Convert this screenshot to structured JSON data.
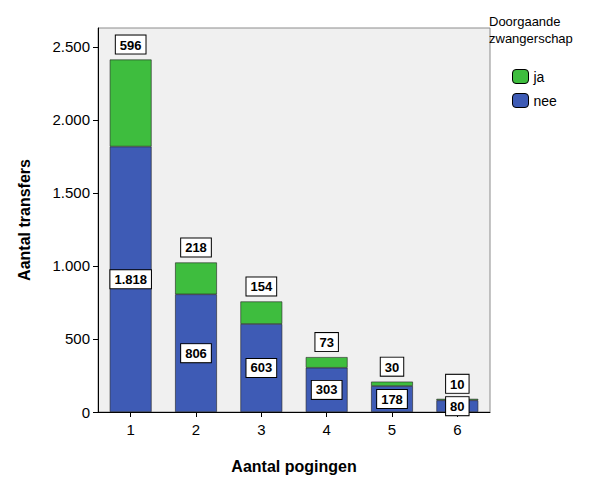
{
  "chart_data": {
    "type": "bar",
    "x_label": "Aantal pogingen",
    "y_label": "Aantal transfers",
    "legend_title": "Doorgaande zwangerschap",
    "categories": [
      "1",
      "2",
      "3",
      "4",
      "5",
      "6"
    ],
    "series": [
      {
        "name": "nee",
        "color": "#3e5bb5",
        "values": [
          1818,
          806,
          603,
          303,
          178,
          80
        ],
        "value_labels": [
          "1.818",
          "806",
          "603",
          "303",
          "178",
          "80"
        ]
      },
      {
        "name": "ja",
        "color": "#3ebd3e",
        "values": [
          596,
          218,
          154,
          73,
          30,
          10
        ]
      }
    ],
    "ylim": [
      0,
      2630
    ],
    "yticks": [
      0,
      500,
      {
        "value": 1000,
        "label": "1.000"
      },
      {
        "value": 1500,
        "label": "1.500"
      },
      {
        "value": 2000,
        "label": "2.000"
      },
      {
        "value": 2500,
        "label": "2.500"
      }
    ],
    "stacked": true,
    "data_labels": true,
    "grid": false,
    "legend": "upper right"
  }
}
